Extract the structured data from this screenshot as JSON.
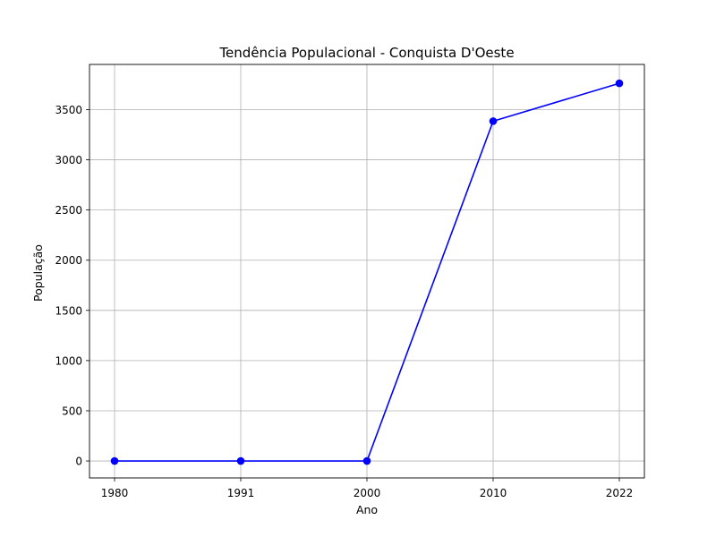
{
  "chart_data": {
    "type": "line",
    "title": "Tendência Populacional - Conquista D'Oeste",
    "xlabel": "Ano",
    "ylabel": "População",
    "categories": [
      "1980",
      "1991",
      "2000",
      "2010",
      "2022"
    ],
    "series": [
      {
        "values": [
          0,
          0,
          0,
          3385,
          3762
        ],
        "color": "#0000ff",
        "marker": "circle"
      }
    ],
    "yticks": [
      0,
      500,
      1000,
      1500,
      2000,
      2500,
      3000,
      3500
    ],
    "ylim": [
      -169,
      3950
    ],
    "grid": true,
    "legend": "none"
  }
}
